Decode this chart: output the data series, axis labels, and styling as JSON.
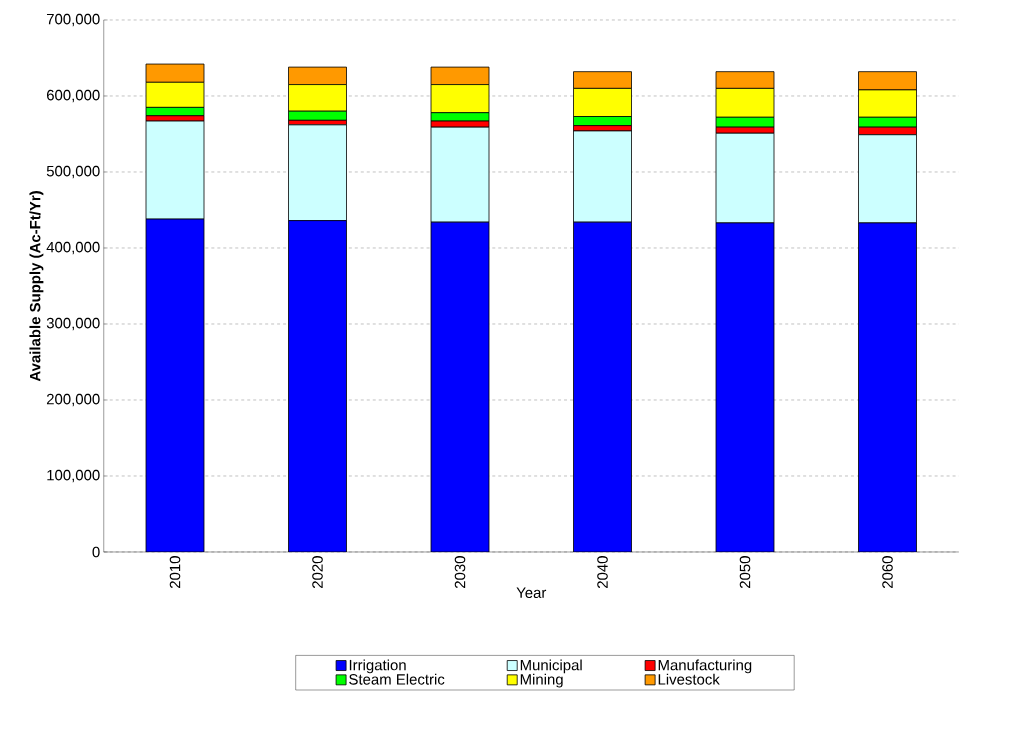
{
  "chart_data": {
    "type": "bar",
    "stacked": true,
    "xlabel": "Year",
    "ylabel": "Available Supply (Ac-Ft/Yr)",
    "categories": [
      "2010",
      "2020",
      "2030",
      "2040",
      "2050",
      "2060"
    ],
    "series": [
      {
        "name": "Irrigation",
        "color": "#0000ff",
        "values": [
          438000,
          436000,
          434000,
          434000,
          433000,
          433000
        ]
      },
      {
        "name": "Municipal",
        "color": "#ccffff",
        "values": [
          129000,
          126000,
          125000,
          120000,
          118000,
          116000
        ]
      },
      {
        "name": "Manufacturing",
        "color": "#ff0000",
        "values": [
          7000,
          6000,
          8000,
          7000,
          8000,
          10000
        ]
      },
      {
        "name": "Steam Electric",
        "color": "#00ff00",
        "values": [
          11000,
          12000,
          11000,
          12000,
          13000,
          13000
        ]
      },
      {
        "name": "Mining",
        "color": "#ffff00",
        "values": [
          33000,
          35000,
          37000,
          37000,
          38000,
          36000
        ]
      },
      {
        "name": "Livestock",
        "color": "#ff9900",
        "values": [
          24000,
          23000,
          23000,
          22000,
          22000,
          24000
        ]
      }
    ],
    "ylim": [
      0,
      700000
    ],
    "yticks": [
      {
        "value": 0,
        "label": "0"
      },
      {
        "value": 100000,
        "label": "100,000"
      },
      {
        "value": 200000,
        "label": "200,000"
      },
      {
        "value": 300000,
        "label": "300,000"
      },
      {
        "value": 400000,
        "label": "400,000"
      },
      {
        "value": 500000,
        "label": "500,000"
      },
      {
        "value": 600000,
        "label": "600,000"
      },
      {
        "value": 700000,
        "label": "700,000"
      }
    ],
    "grid": "y",
    "legend": "bottom"
  }
}
